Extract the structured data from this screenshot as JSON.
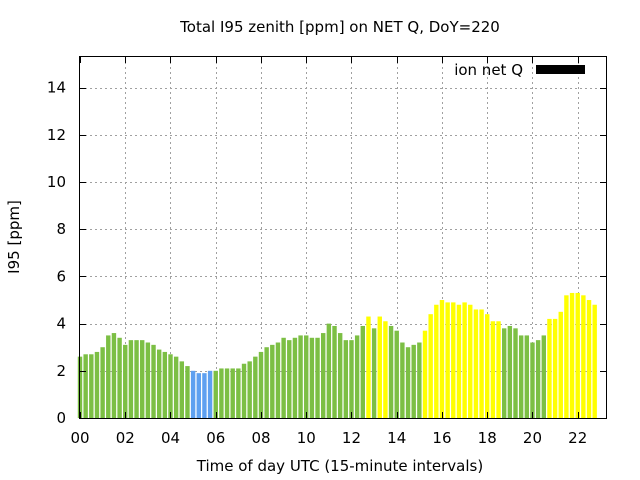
{
  "chart_data": {
    "type": "bar",
    "title": "Total I95 zenith [ppm] on NET Q, DoY=220",
    "xlabel": "Time of day UTC (15-minute intervals)",
    "ylabel": "I95 [ppm]",
    "legend": {
      "label": "ion net Q",
      "color": "#000000",
      "placement": "top-right"
    },
    "xlim": [
      0,
      23.25
    ],
    "ylim": [
      0,
      15.3
    ],
    "x_interval_hours": 0.25,
    "x_ticks": [
      "00",
      "02",
      "04",
      "06",
      "08",
      "10",
      "12",
      "14",
      "16",
      "18",
      "20",
      "22"
    ],
    "y_ticks": [
      "0",
      "2",
      "4",
      "6",
      "8",
      "10",
      "12",
      "14"
    ],
    "grid": true,
    "colors": {
      "green": "#7cbf44",
      "blue": "#5ea0f0",
      "yellow": "#ffff00"
    },
    "values": [
      2.6,
      2.7,
      2.7,
      2.8,
      3.0,
      3.5,
      3.6,
      3.4,
      3.1,
      3.3,
      3.3,
      3.3,
      3.2,
      3.1,
      2.9,
      2.8,
      2.7,
      2.6,
      2.4,
      2.2,
      2.0,
      1.9,
      1.9,
      2.0,
      2.0,
      2.1,
      2.1,
      2.1,
      2.1,
      2.3,
      2.4,
      2.6,
      2.8,
      3.0,
      3.1,
      3.2,
      3.4,
      3.3,
      3.4,
      3.5,
      3.5,
      3.4,
      3.4,
      3.6,
      4.0,
      3.9,
      3.6,
      3.3,
      3.3,
      3.5,
      3.9,
      4.3,
      3.8,
      4.3,
      4.1,
      3.9,
      3.7,
      3.2,
      3.0,
      3.1,
      3.2,
      3.7,
      4.4,
      4.8,
      5.0,
      4.9,
      4.9,
      4.8,
      4.9,
      4.8,
      4.6,
      4.6,
      4.4,
      4.1,
      4.1,
      3.8,
      3.9,
      3.8,
      3.5,
      3.5,
      3.2,
      3.3,
      3.5,
      4.2,
      4.2,
      4.5,
      5.2,
      5.3,
      5.3,
      5.2,
      5.0,
      4.8
    ],
    "bar_colors": [
      "green",
      "green",
      "green",
      "green",
      "green",
      "green",
      "green",
      "green",
      "green",
      "green",
      "green",
      "green",
      "green",
      "green",
      "green",
      "green",
      "green",
      "green",
      "green",
      "green",
      "blue",
      "blue",
      "blue",
      "blue",
      "green",
      "green",
      "green",
      "green",
      "green",
      "green",
      "green",
      "green",
      "green",
      "green",
      "green",
      "green",
      "green",
      "green",
      "green",
      "green",
      "green",
      "green",
      "green",
      "green",
      "green",
      "green",
      "green",
      "green",
      "green",
      "green",
      "green",
      "yellow",
      "green",
      "yellow",
      "yellow",
      "green",
      "green",
      "green",
      "green",
      "green",
      "green",
      "yellow",
      "yellow",
      "yellow",
      "yellow",
      "yellow",
      "yellow",
      "yellow",
      "yellow",
      "yellow",
      "yellow",
      "yellow",
      "yellow",
      "yellow",
      "yellow",
      "green",
      "green",
      "green",
      "green",
      "green",
      "green",
      "green",
      "green",
      "yellow",
      "yellow",
      "yellow",
      "yellow",
      "yellow",
      "yellow",
      "yellow",
      "yellow",
      "yellow"
    ]
  }
}
